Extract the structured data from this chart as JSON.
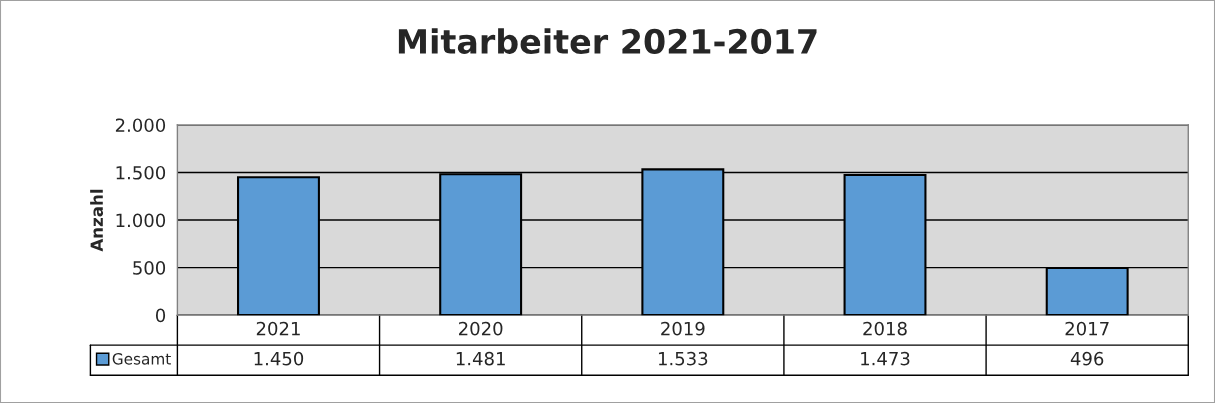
{
  "chart_data": {
    "type": "bar",
    "title": "Mitarbeiter 2021-2017",
    "ylabel": "Anzahl",
    "categories": [
      "2021",
      "2020",
      "2019",
      "2018",
      "2017"
    ],
    "series": [
      {
        "name": "Gesamt",
        "color": "#5b9bd5",
        "values": [
          1450,
          1481,
          1533,
          1473,
          496
        ],
        "value_labels": [
          "1.450",
          "1.481",
          "1.533",
          "1.473",
          "496"
        ]
      }
    ],
    "ylim": [
      0,
      2000
    ],
    "yticks": [
      {
        "value": 0,
        "label": "0"
      },
      {
        "value": 500,
        "label": "500"
      },
      {
        "value": 1000,
        "label": "1.000"
      },
      {
        "value": 1500,
        "label": "1.500"
      },
      {
        "value": 2000,
        "label": "2.000"
      }
    ],
    "grid": "y",
    "legend": "bottom"
  }
}
